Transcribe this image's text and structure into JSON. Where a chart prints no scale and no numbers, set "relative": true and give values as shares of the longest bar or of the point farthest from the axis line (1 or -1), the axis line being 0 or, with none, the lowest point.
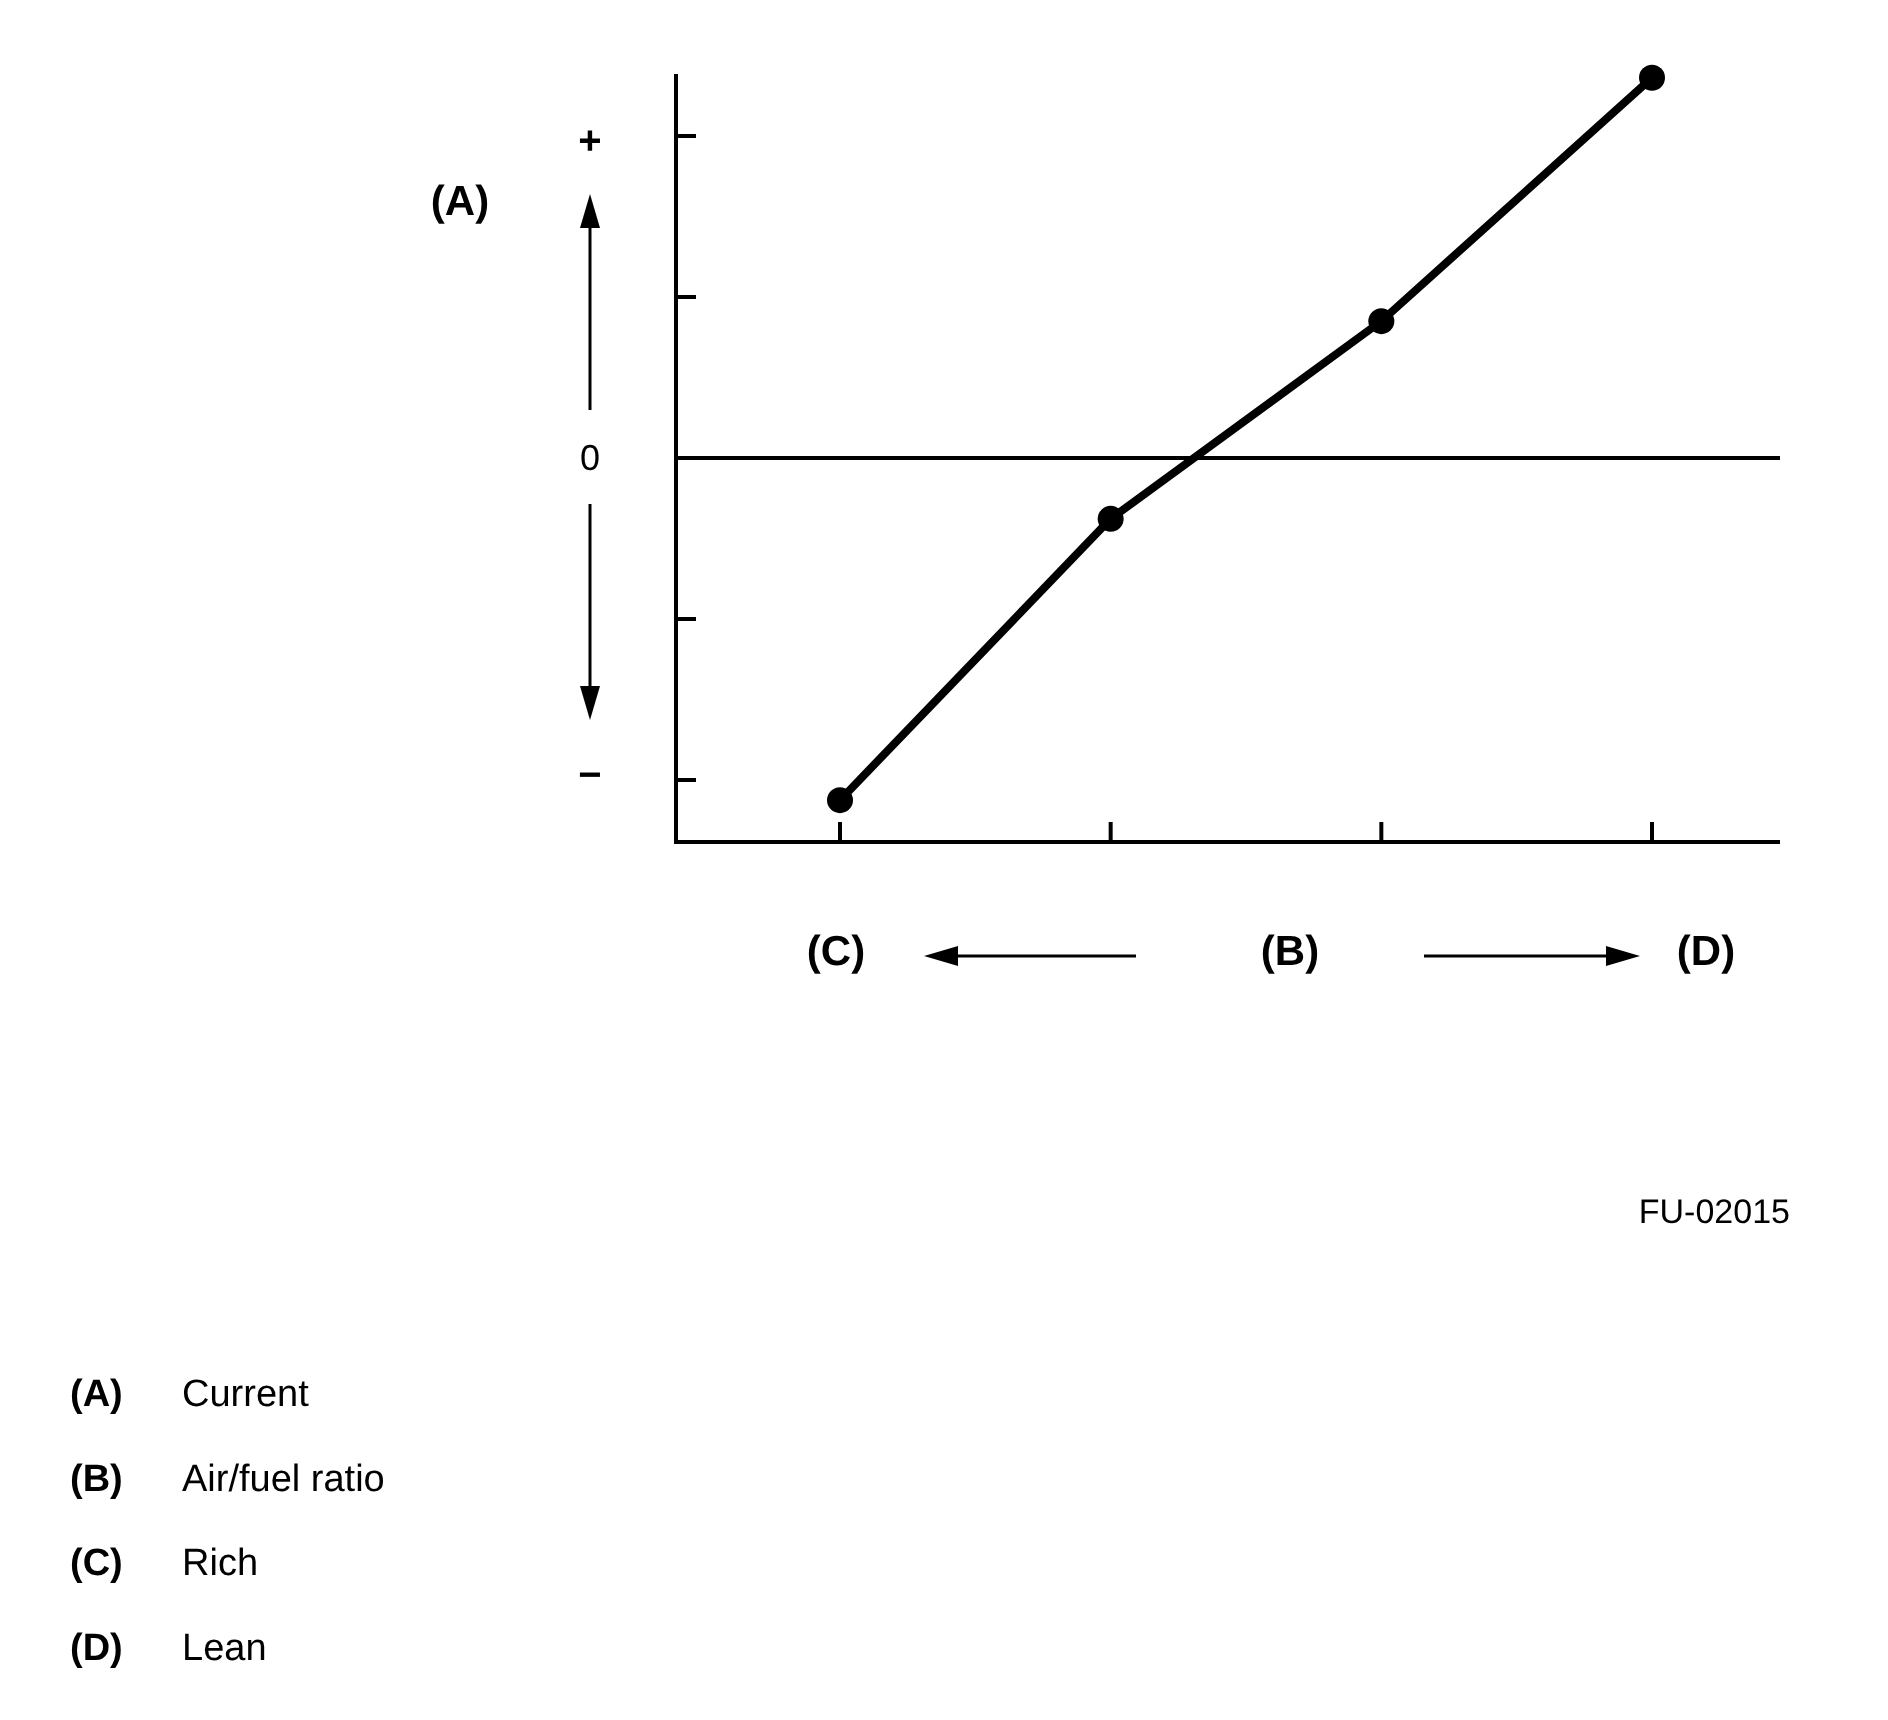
{
  "chart_data": {
    "type": "line",
    "ylabel": "(A)",
    "xlabel": "(B)",
    "relative": true,
    "marker": "circle",
    "annotations": [
      "+",
      "0",
      "−",
      "(C)",
      "(D)",
      "FU-02015",
      "(A) Current",
      "(B) Air/fuel ratio",
      "(C) Rich",
      "(D) Lean"
    ],
    "categories": [
      null,
      null,
      null,
      null
    ],
    "series": [
      {
        "color": "#000000",
        "values": [
          -0.9,
          -0.16,
          0.36,
          1
        ]
      }
    ]
  }
}
